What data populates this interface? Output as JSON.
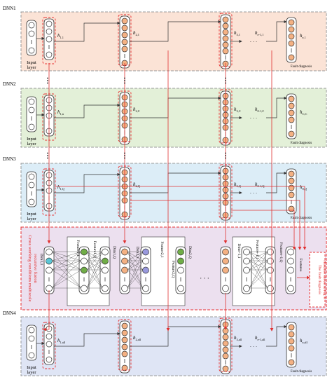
{
  "diagram": {
    "panel_labels": [
      "DNN1",
      "DNN2",
      "DNN3",
      "DNN4"
    ],
    "input_label_line1": "Input",
    "input_label_line2": "layer",
    "fault_label": "Fault diagnosis",
    "hidden_labels": {
      "dnn1": [
        "h1,1",
        "h2,1",
        "h3,1",
        "he-1,1",
        "he,1"
      ],
      "dnn2": [
        "h1,n",
        "h2,C",
        "h3,C",
        "h0-1,C",
        "hC,C"
      ],
      "dnn3": [
        "h1,Q",
        "h2,Q",
        "h3,Q",
        "h0-1,Q",
        "h0,Q"
      ],
      "dnn4": [
        "h1,all",
        "h2,all",
        "h3,all",
        "he-1,all",
        "he,all"
      ]
    },
    "fusion": {
      "side_title_line1": "Cross working conditions multiscale",
      "side_title_line2": "recursive fusion",
      "dim_labels": [
        "Dim1,1",
        "Dim1,Q",
        "Dim2,1",
        "Dim2,Q",
        "Dime-1,1",
        "Dime-1,Q"
      ],
      "feature_labels": [
        "Feature1,1",
        "Feature1,Q",
        "Feature2,1",
        "Feature2,Q",
        "Featuree-1,1",
        "Featuree-1,Q",
        "Featuree"
      ],
      "ellipsis": "· · ·",
      "right_note_line1": "The fault diagnosis",
      "right_note_line2": "classifier shown in Fig. 6"
    },
    "colors": {
      "dnn1_bg": "#fbe3d6",
      "dnn2_bg": "#e3f0d8",
      "dnn3_bg": "#dcedf7",
      "fusion_bg": "#ece0ef",
      "dnn4_bg": "#dfe5f5",
      "node_orange": "#f4b183",
      "node_green": "#70ad47",
      "node_purple": "#9999dd",
      "node_cyan": "#5bc6d6",
      "arrow_red": "#e03030",
      "dash_red": "#e83030"
    }
  }
}
